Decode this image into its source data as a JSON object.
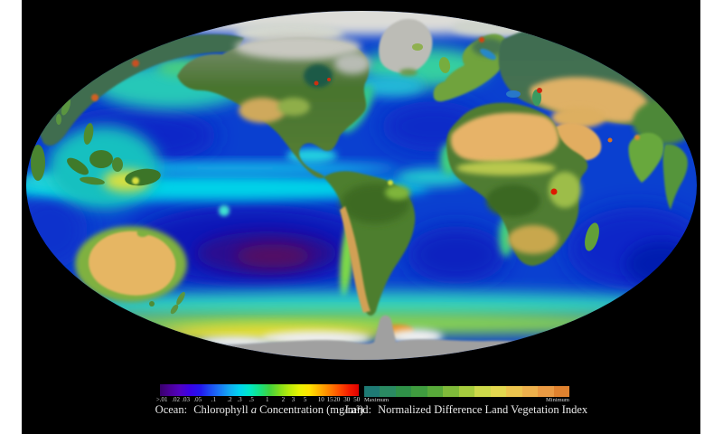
{
  "page": {
    "background": "#ffffff",
    "image_background": "#000000"
  },
  "legends": {
    "ocean": {
      "caption_prefix": "Ocean:",
      "caption_word1": "Chlorophyll",
      "caption_italic": "a",
      "caption_suffix": "Concentration (mg/m³)",
      "ticks": [
        {
          "label": ">.01",
          "pos": 1
        },
        {
          "label": ".02",
          "pos": 8
        },
        {
          "label": ".03",
          "pos": 13
        },
        {
          "label": ".05",
          "pos": 19
        },
        {
          "label": ".1",
          "pos": 27
        },
        {
          "label": ".2",
          "pos": 35
        },
        {
          "label": ".3",
          "pos": 40
        },
        {
          "label": ".5",
          "pos": 46
        },
        {
          "label": "1",
          "pos": 54
        },
        {
          "label": "2",
          "pos": 62
        },
        {
          "label": "3",
          "pos": 67
        },
        {
          "label": "5",
          "pos": 73
        },
        {
          "label": "10",
          "pos": 81
        },
        {
          "label": "15",
          "pos": 85.5
        },
        {
          "label": "20",
          "pos": 89
        },
        {
          "label": "30",
          "pos": 94
        },
        {
          "label": "50",
          "pos": 99
        }
      ],
      "gradient": [
        "#38006b",
        "#4b0099",
        "#5202c2",
        "#3a01e8",
        "#2414f0",
        "#1d49f2",
        "#1a78f5",
        "#12aaf2",
        "#00d4f0",
        "#00e8c8",
        "#15e285",
        "#3fd23f",
        "#7fdd1d",
        "#b8ea0a",
        "#e8f202",
        "#ffe400",
        "#ffb400",
        "#ff8400",
        "#ff5000",
        "#f41e00",
        "#e00000"
      ]
    },
    "land": {
      "caption_prefix": "Land:",
      "caption_suffix": "Normalized Difference Land Vegetation Index",
      "max_label": "Maximum",
      "min_label": "Minimum",
      "steps": [
        "#1e7a74",
        "#2a8a62",
        "#2f9148",
        "#3f9c3f",
        "#58a93a",
        "#7fba3a",
        "#a6cc3e",
        "#cdd94a",
        "#e3d74f",
        "#ecc44e",
        "#edb04c",
        "#ea9a43",
        "#e0822f"
      ]
    }
  }
}
